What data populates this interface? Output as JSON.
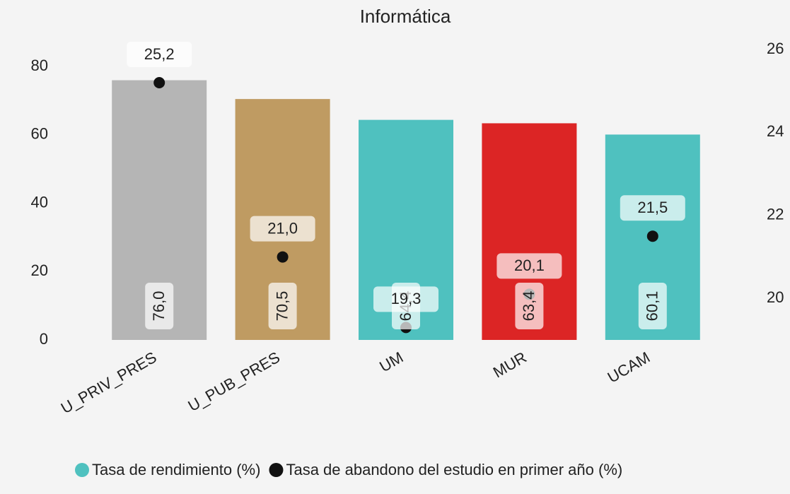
{
  "chart_data": {
    "type": "bar_scatter",
    "title": "Informática",
    "categories": [
      "U_PRIV_PRES",
      "U_PUB_PRES",
      "UM",
      "MUR",
      "UCAM"
    ],
    "series": [
      {
        "name": "Tasa de rendimiento (%)",
        "color": "#4fc1bf",
        "type": "bar",
        "colors": [
          "#b5b5b5",
          "#bf9b62",
          "#4fc1bf",
          "#dc2525",
          "#4fc1bf"
        ],
        "values": [
          76.0,
          70.5,
          64.4,
          63.4,
          60.1
        ],
        "value_labels": [
          "76,0",
          "70,5",
          "64,4",
          "63,4",
          "60,1"
        ]
      },
      {
        "name": "Tasa de abandono del estudio en primer año (%)",
        "color": "#111111",
        "type": "scatter",
        "axis": "y2",
        "values": [
          25.2,
          21.0,
          19.3,
          20.1,
          21.5
        ],
        "value_labels": [
          "25,2",
          "21,0",
          "19,3",
          "20,1",
          "21,5"
        ]
      }
    ],
    "ylim": [
      0,
      85
    ],
    "yticks": [
      0,
      20,
      40,
      60,
      80
    ],
    "y2lim": [
      19,
      26
    ],
    "y2ticks": [
      20,
      22,
      24,
      26
    ]
  }
}
